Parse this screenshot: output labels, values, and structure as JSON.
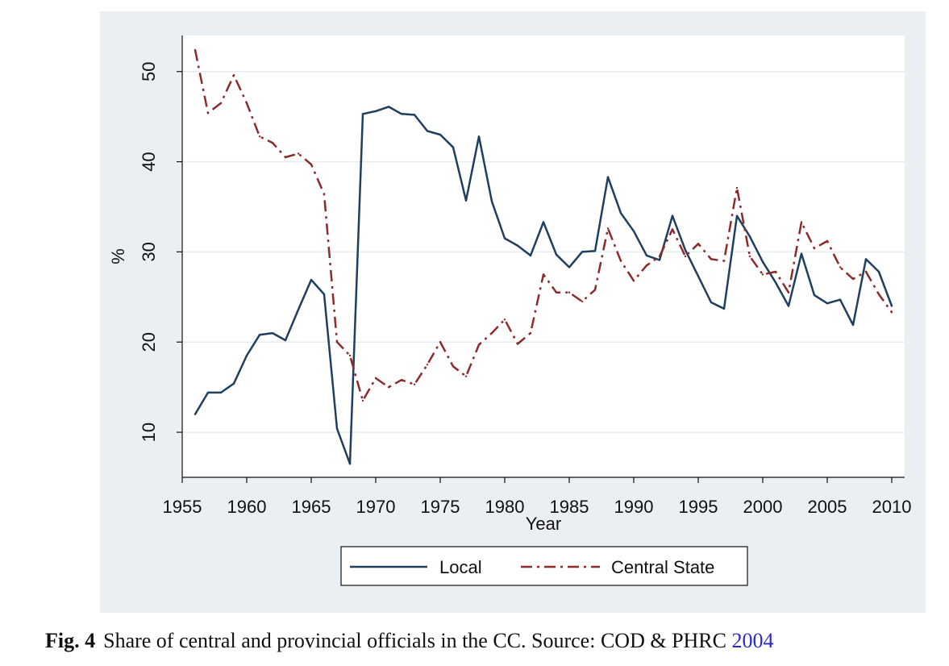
{
  "chart_data": {
    "type": "line",
    "xlabel": "Year",
    "ylabel": "%",
    "xlim": [
      1955,
      2011
    ],
    "ylim": [
      5,
      54
    ],
    "xticks": [
      "1955",
      "1960",
      "1965",
      "1970",
      "1975",
      "1980",
      "1985",
      "1990",
      "1995",
      "2000",
      "2005",
      "2010"
    ],
    "yticks": [
      "10",
      "20",
      "30",
      "40",
      "50"
    ],
    "grid": true,
    "legend_position": "bottom",
    "x": [
      1956,
      1957,
      1958,
      1959,
      1960,
      1961,
      1962,
      1963,
      1964,
      1965,
      1966,
      1967,
      1968,
      1969,
      1970,
      1971,
      1972,
      1973,
      1974,
      1975,
      1976,
      1977,
      1978,
      1979,
      1980,
      1981,
      1982,
      1983,
      1984,
      1985,
      1986,
      1987,
      1988,
      1989,
      1990,
      1991,
      1992,
      1993,
      1994,
      1995,
      1996,
      1997,
      1998,
      1999,
      2000,
      2001,
      2002,
      2003,
      2004,
      2005,
      2006,
      2007,
      2008,
      2009,
      2010
    ],
    "series": [
      {
        "name": "Local",
        "color": "#1f3f5f",
        "style": "solid",
        "values": [
          12,
          14.4,
          14.4,
          15.4,
          18.5,
          20.8,
          21,
          20.2,
          23.6,
          26.9,
          25.3,
          10.4,
          6.5,
          45.3,
          45.6,
          46.1,
          45.3,
          45.2,
          43.4,
          43,
          41.6,
          35.7,
          42.8,
          35.6,
          31.5,
          30.7,
          29.6,
          33.3,
          29.7,
          28.3,
          30,
          30.1,
          38.3,
          34.3,
          32.3,
          29.6,
          29.1,
          34,
          30.2,
          27.3,
          24.4,
          23.7,
          34,
          31.7,
          28.9,
          26.6,
          24,
          29.8,
          25.2,
          24.3,
          24.7,
          21.9,
          29.2,
          27.8,
          24
        ]
      },
      {
        "name": "Central State",
        "color": "#8b2b2b",
        "style": "dash-dot",
        "values": [
          52.4,
          45.4,
          46.5,
          49.6,
          46.5,
          42.8,
          42.1,
          40.5,
          40.9,
          39.7,
          36.4,
          20,
          18.5,
          13.5,
          16,
          15,
          15.8,
          15.3,
          17.5,
          20,
          17.3,
          16.2,
          19.7,
          21,
          22.5,
          19.8,
          21,
          27.5,
          25.5,
          25.5,
          24.5,
          25.8,
          32.6,
          29,
          26.8,
          28.5,
          29.5,
          32.5,
          29.5,
          30.9,
          29.2,
          29,
          37.1,
          29.5,
          27.5,
          27.8,
          25.5,
          33.3,
          30.4,
          31.2,
          28.3,
          27,
          27.8,
          25.3,
          23.3
        ]
      }
    ]
  },
  "caption": {
    "label": "Fig. 4",
    "text": "Share of central and provincial officials in the CC. Source: COD & PHRC ",
    "year_link": "2004"
  }
}
